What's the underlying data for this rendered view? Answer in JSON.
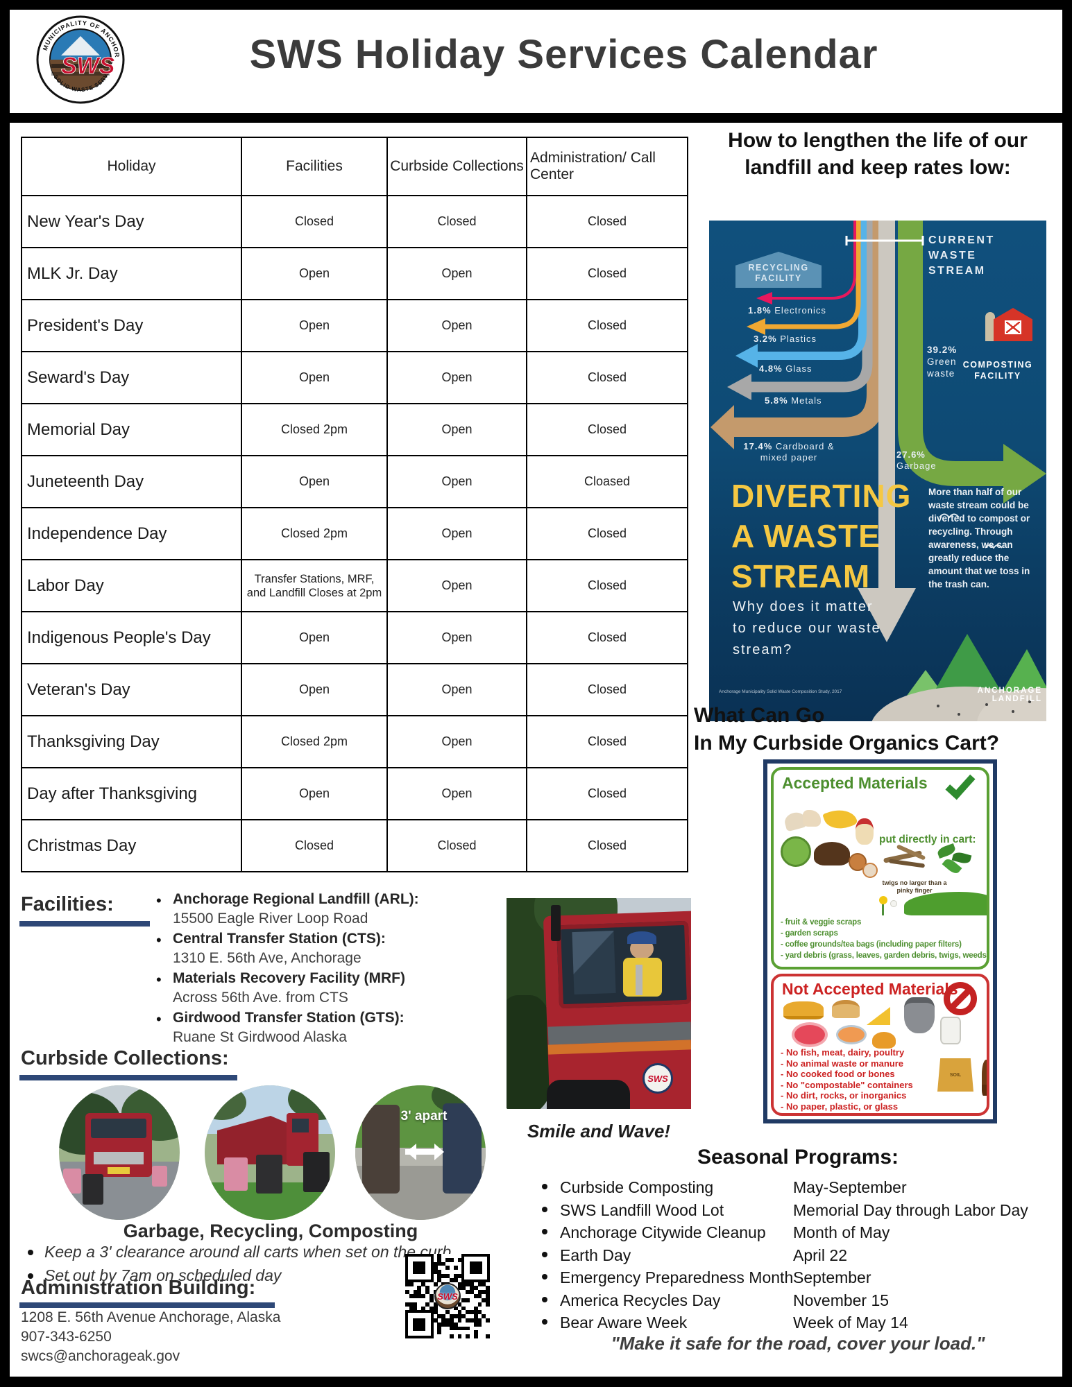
{
  "page": {
    "title": "SWS Holiday Services Calendar",
    "logo_text": "SWS",
    "logo_ring_top": "MUNICIPALITY OF ANCHORAGE",
    "logo_ring_bottom": "SOLID WASTE SERVICES"
  },
  "holiday_table": {
    "columns": [
      "Holiday",
      "Facilities",
      "Curbside Collections",
      "Administration/ Call Center"
    ],
    "rows": [
      {
        "holiday": "New Year's Day",
        "facilities": "Closed",
        "curbside": "Closed",
        "admin": "Closed"
      },
      {
        "holiday": "MLK Jr. Day",
        "facilities": "Open",
        "curbside": "Open",
        "admin": "Closed"
      },
      {
        "holiday": "President's Day",
        "facilities": "Open",
        "curbside": "Open",
        "admin": "Closed"
      },
      {
        "holiday": "Seward's Day",
        "facilities": "Open",
        "curbside": "Open",
        "admin": "Closed"
      },
      {
        "holiday": "Memorial Day",
        "facilities": "Closed 2pm",
        "curbside": "Open",
        "admin": "Closed"
      },
      {
        "holiday": "Juneteenth Day",
        "facilities": "Open",
        "curbside": "Open",
        "admin": "Cloased"
      },
      {
        "holiday": "Independence Day",
        "facilities": "Closed 2pm",
        "curbside": "Open",
        "admin": "Closed"
      },
      {
        "holiday": "Labor Day",
        "facilities": "Transfer Stations, MRF, and Landfill Closes at 2pm",
        "curbside": "Open",
        "admin": "Closed"
      },
      {
        "holiday": "Indigenous People's Day",
        "facilities": "Open",
        "curbside": "Open",
        "admin": "Closed"
      },
      {
        "holiday": "Veteran's Day",
        "facilities": "Open",
        "curbside": "Open",
        "admin": "Closed"
      },
      {
        "holiday": "Thanksgiving Day",
        "facilities": "Closed 2pm",
        "curbside": "Open",
        "admin": "Closed"
      },
      {
        "holiday": "Day after Thanksgiving",
        "facilities": "Open",
        "curbside": "Open",
        "admin": "Closed"
      },
      {
        "holiday": "Christmas Day",
        "facilities": "Closed",
        "curbside": "Closed",
        "admin": "Closed"
      }
    ]
  },
  "landfill": {
    "heading": "How to lengthen the life of our landfill and keep rates low:",
    "infographic": {
      "recycling_facility": "RECYCLING FACILITY",
      "current_waste_stream": "CURRENT WASTE STREAM",
      "streams": [
        {
          "pct": "1.8%",
          "label": "Electronics",
          "color": "#e8175d"
        },
        {
          "pct": "3.2%",
          "label": "Plastics",
          "color": "#f0a832"
        },
        {
          "pct": "4.8%",
          "label": "Glass",
          "color": "#56b3e8"
        },
        {
          "pct": "5.8%",
          "label": "Metals",
          "color": "#9b9b9b"
        },
        {
          "pct": "17.4%",
          "label": "Cardboard & mixed paper",
          "color": "#c49a6c"
        }
      ],
      "green_waste_pct": "39.2%",
      "green_waste_label": "Green waste",
      "composting_facility": "COMPOSTING FACILITY",
      "garbage_pct": "27.6%",
      "garbage_label": "Garbage",
      "title_line1": "DIVERTING",
      "title_line2": "A WASTE",
      "title_line3": "STREAM",
      "subtitle": "Why does it matter to reduce our waste stream?",
      "paragraph": "More than half of our waste stream could be diverted to compost or recycling. Through awareness, we can greatly reduce the amount that we toss in the trash can.",
      "landfill_label": "ANCHORAGE LANDFILL",
      "credit": "Anchorage Municipality Solid Waste Composition Study, 2017"
    }
  },
  "organics": {
    "heading_line1": "What Can Go",
    "heading_line2": "In My Curbside Organics Cart?",
    "accepted": {
      "title": "Accepted Materials",
      "cart_note": "put directly in cart:",
      "twig_note": "twigs no larger than a pinky finger",
      "items": [
        "- fruit & veggie scraps",
        "- garden scraps",
        "- coffee grounds/tea bags (including paper filters)",
        "- yard debris (grass, leaves, garden debris, twigs, weeds)"
      ]
    },
    "not_accepted": {
      "title": "Not Accepted Materials",
      "soil_label": "SOIL",
      "items": [
        "- No fish, meat, dairy, poultry",
        "- No animal waste or manure",
        "- No cooked food or bones",
        "- No \"compostable\" containers",
        "- No dirt, rocks, or inorganics",
        "- No paper, plastic, or glass"
      ]
    }
  },
  "facilities_section": {
    "heading": "Facilities:",
    "items": [
      {
        "name": "Anchorage Regional Landfill (ARL):",
        "detail": "15500 Eagle River Loop Road"
      },
      {
        "name": "Central Transfer Station (CTS):",
        "detail": "1310 E. 56th Ave, Anchorage"
      },
      {
        "name": "Materials Recovery Facility (MRF)",
        "detail": "Across 56th Ave. from CTS"
      },
      {
        "name": "Girdwood Transfer Station (GTS):",
        "detail": "Ruane St Girdwood Alaska"
      }
    ]
  },
  "curbside_section": {
    "heading": "Curbside Collections:",
    "photo3_label": "3' apart",
    "caption": "Garbage, Recycling, Composting",
    "bullets": [
      "Keep a 3' clearance around all carts when set on the curb",
      "Set out by 7am on scheduled day"
    ]
  },
  "admin_section": {
    "heading": "Administration Building:",
    "address": "1208 E. 56th Avenue Anchorage, Alaska",
    "phone": "907-343-6250",
    "email": "swcs@anchorageak.gov"
  },
  "truck_caption": "Smile and Wave!",
  "seasonal": {
    "heading": "Seasonal Programs:",
    "programs": [
      {
        "name": "Curbside Composting",
        "timing": "May-September"
      },
      {
        "name": "SWS Landfill Wood Lot",
        "timing": "Memorial Day through Labor Day"
      },
      {
        "name": "Anchorage Citywide Cleanup",
        "timing": "Month of May"
      },
      {
        "name": "Earth Day",
        "timing": "April 22"
      },
      {
        "name": "Emergency Preparedness Month",
        "timing": "September"
      },
      {
        "name": "America Recycles Day",
        "timing": "November 15"
      },
      {
        "name": "Bear Aware Week",
        "timing": "Week of May 14"
      }
    ]
  },
  "quote": "\"Make it safe for the road, cover your load.\""
}
